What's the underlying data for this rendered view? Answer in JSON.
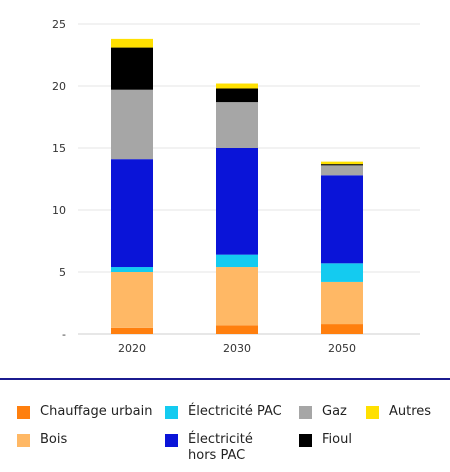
{
  "chart_data": {
    "type": "bar",
    "stacked": true,
    "categories": [
      "2020",
      "2030",
      "2050"
    ],
    "ylim": [
      0,
      25
    ],
    "yticks": [
      0,
      5,
      10,
      15,
      20,
      25
    ],
    "ytick_labels": [
      "-",
      "5",
      "10",
      "15",
      "20",
      "25"
    ],
    "grid": true,
    "legend_position": "bottom",
    "series": [
      {
        "name": "Chauffage urbain",
        "color": "#ff7f0e",
        "values": [
          0.5,
          0.7,
          0.8
        ]
      },
      {
        "name": "Bois",
        "color": "#ffb865",
        "values": [
          4.5,
          4.7,
          3.4
        ]
      },
      {
        "name": "Électricité PAC",
        "color": "#14cbf0",
        "values": [
          0.4,
          1.0,
          1.5
        ]
      },
      {
        "name": "Électricité hors PAC",
        "color": "#0a14d8",
        "values": [
          8.7,
          8.6,
          7.1
        ]
      },
      {
        "name": "Gaz",
        "color": "#a6a6a6",
        "values": [
          5.6,
          3.7,
          0.8
        ]
      },
      {
        "name": "Fioul",
        "color": "#000000",
        "values": [
          3.4,
          1.1,
          0.1
        ]
      },
      {
        "name": "Autres",
        "color": "#ffe000",
        "values": [
          0.7,
          0.4,
          0.2
        ]
      }
    ]
  },
  "legend": {
    "chauffage_urbain": "Chauffage urbain",
    "electricite_pac": "Électricité PAC",
    "gaz": "Gaz",
    "autres": "Autres",
    "bois": "Bois",
    "electricite_hors_pac_line1": "Électricité",
    "electricite_hors_pac_line2": "hors PAC",
    "fioul": "Fioul"
  }
}
